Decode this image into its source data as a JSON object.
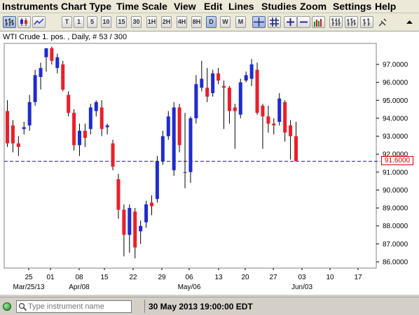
{
  "menu": [
    "Instruments",
    "Chart Type",
    "Time Scale",
    "View",
    "Edit",
    "Lines",
    "Studies",
    "Zoom",
    "Settings",
    "Help"
  ],
  "toolbar": {
    "timeframes": [
      "T",
      "1",
      "5",
      "10",
      "15",
      "30",
      "1H",
      "2H",
      "4H",
      "8H",
      "D",
      "W",
      "M"
    ],
    "active_timeframe": "D"
  },
  "chart": {
    "title": "WTI Crude 1. pos. , Daily, # 53 / 300",
    "current_price": "91.6000"
  },
  "chart_data": {
    "type": "candlestick",
    "title": "WTI Crude 1. pos. , Daily, # 53 / 300",
    "ylim": [
      85.5,
      98.2
    ],
    "y_ticks": [
      "97.0000",
      "96.0000",
      "95.0000",
      "94.0000",
      "93.0000",
      "92.0000",
      "91.0000",
      "90.0000",
      "89.0000",
      "88.0000",
      "87.0000",
      "86.0000"
    ],
    "x_ticks": [
      "25",
      "01",
      "08",
      "15",
      "22",
      "29",
      "06",
      "13",
      "20",
      "27",
      "03",
      "10",
      "17"
    ],
    "month_labels": [
      "Mar/25/13",
      "Apr/08",
      "May/06",
      "Jun/03"
    ],
    "current_price": 91.6,
    "candles": [
      {
        "o": 94.4,
        "h": 95.0,
        "l": 92.4,
        "c": 92.6
      },
      {
        "o": 93.6,
        "h": 93.9,
        "l": 92.1,
        "c": 92.6
      },
      {
        "o": 92.6,
        "h": 93.0,
        "l": 91.9,
        "c": 92.4
      },
      {
        "o": 93.4,
        "h": 93.8,
        "l": 93.1,
        "c": 93.5
      },
      {
        "o": 93.6,
        "h": 95.3,
        "l": 93.3,
        "c": 94.9
      },
      {
        "o": 94.9,
        "h": 96.7,
        "l": 94.7,
        "c": 96.4
      },
      {
        "o": 96.3,
        "h": 97.1,
        "l": 95.6,
        "c": 96.8
      },
      {
        "o": 97.4,
        "h": 97.9,
        "l": 96.6,
        "c": 97.9
      },
      {
        "o": 97.9,
        "h": 98.0,
        "l": 97.0,
        "c": 97.2
      },
      {
        "o": 96.8,
        "h": 97.6,
        "l": 96.5,
        "c": 97.4
      },
      {
        "o": 97.0,
        "h": 97.2,
        "l": 95.5,
        "c": 95.6
      },
      {
        "o": 95.3,
        "h": 95.5,
        "l": 94.1,
        "c": 94.3
      },
      {
        "o": 94.3,
        "h": 94.5,
        "l": 92.2,
        "c": 92.5
      },
      {
        "o": 92.5,
        "h": 93.7,
        "l": 91.9,
        "c": 93.3
      },
      {
        "o": 93.3,
        "h": 93.7,
        "l": 92.4,
        "c": 92.9
      },
      {
        "o": 93.4,
        "h": 94.8,
        "l": 93.1,
        "c": 94.6
      },
      {
        "o": 94.4,
        "h": 95.0,
        "l": 94.1,
        "c": 94.9
      },
      {
        "o": 94.6,
        "h": 95.0,
        "l": 93.0,
        "c": 93.4
      },
      {
        "o": 93.5,
        "h": 93.7,
        "l": 93.1,
        "c": 93.6
      },
      {
        "o": 92.6,
        "h": 92.8,
        "l": 91.1,
        "c": 91.3
      },
      {
        "o": 90.6,
        "h": 90.9,
        "l": 88.4,
        "c": 88.9
      },
      {
        "o": 88.9,
        "h": 89.2,
        "l": 86.3,
        "c": 87.5
      },
      {
        "o": 87.5,
        "h": 89.2,
        "l": 86.5,
        "c": 89.0
      },
      {
        "o": 88.8,
        "h": 89.0,
        "l": 86.2,
        "c": 86.8
      },
      {
        "o": 87.7,
        "h": 88.3,
        "l": 87.0,
        "c": 88.0
      },
      {
        "o": 88.2,
        "h": 89.4,
        "l": 87.9,
        "c": 89.2
      },
      {
        "o": 89.3,
        "h": 89.7,
        "l": 88.6,
        "c": 89.1
      },
      {
        "o": 89.5,
        "h": 91.9,
        "l": 89.3,
        "c": 91.6
      },
      {
        "o": 91.6,
        "h": 93.3,
        "l": 91.4,
        "c": 93.0
      },
      {
        "o": 93.0,
        "h": 94.4,
        "l": 92.8,
        "c": 94.1
      },
      {
        "o": 91.1,
        "h": 94.9,
        "l": 90.8,
        "c": 94.6
      },
      {
        "o": 94.6,
        "h": 94.8,
        "l": 92.1,
        "c": 92.5
      },
      {
        "o": 91.0,
        "h": 94.3,
        "l": 90.1,
        "c": 91.0
      },
      {
        "o": 91.0,
        "h": 94.1,
        "l": 90.4,
        "c": 94.0
      },
      {
        "o": 94.0,
        "h": 96.4,
        "l": 93.7,
        "c": 95.9
      },
      {
        "o": 95.7,
        "h": 97.2,
        "l": 95.5,
        "c": 96.2
      },
      {
        "o": 95.7,
        "h": 96.8,
        "l": 94.9,
        "c": 95.2
      },
      {
        "o": 95.4,
        "h": 96.7,
        "l": 95.2,
        "c": 96.5
      },
      {
        "o": 96.5,
        "h": 96.8,
        "l": 95.9,
        "c": 96.1
      },
      {
        "o": 95.8,
        "h": 96.1,
        "l": 93.4,
        "c": 95.7
      },
      {
        "o": 95.7,
        "h": 95.8,
        "l": 93.7,
        "c": 94.4
      },
      {
        "o": 94.6,
        "h": 94.8,
        "l": 92.3,
        "c": 94.4
      },
      {
        "o": 94.2,
        "h": 96.2,
        "l": 94.0,
        "c": 96.0
      },
      {
        "o": 96.1,
        "h": 96.6,
        "l": 96.0,
        "c": 96.4
      },
      {
        "o": 96.2,
        "h": 97.3,
        "l": 95.8,
        "c": 97.0
      },
      {
        "o": 96.7,
        "h": 97.1,
        "l": 94.2,
        "c": 94.3
      },
      {
        "o": 94.7,
        "h": 94.8,
        "l": 92.3,
        "c": 94.1
      },
      {
        "o": 94.1,
        "h": 94.7,
        "l": 93.2,
        "c": 93.7
      },
      {
        "o": 93.7,
        "h": 94.0,
        "l": 93.1,
        "c": 93.6
      },
      {
        "o": 93.8,
        "h": 95.4,
        "l": 93.6,
        "c": 95.1
      },
      {
        "o": 94.9,
        "h": 95.0,
        "l": 92.7,
        "c": 93.2
      },
      {
        "o": 93.6,
        "h": 93.9,
        "l": 91.7,
        "c": 93.0
      },
      {
        "o": 93.0,
        "h": 93.8,
        "l": 91.6,
        "c": 91.6
      }
    ]
  },
  "statusbar": {
    "search_placeholder": "Type instrument name",
    "datetime": "30 May 2013 19:00:00 EDT"
  },
  "colors": {
    "up": "#1f2ccd",
    "down": "#e8202a",
    "price_line": "#1e1e8a",
    "price_box": "#cc0000"
  }
}
